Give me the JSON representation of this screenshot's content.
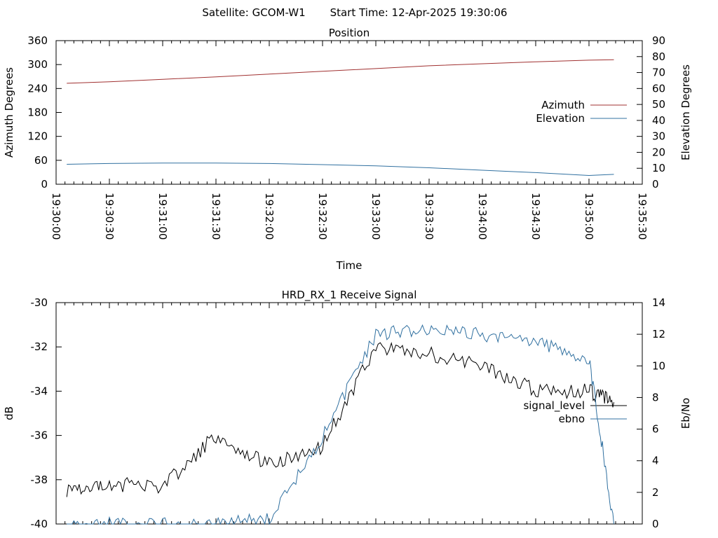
{
  "header": {
    "satellite": "Satellite: GCOM-W1",
    "start_time": "Start Time: 12-Apr-2025 19:30:06"
  },
  "chart_data": [
    {
      "type": "line",
      "title": "Position",
      "xlabel": "Time",
      "ylabel": "Azimuth Degrees",
      "y2label": "Elevation Degrees",
      "xlim": [
        "19:30:00",
        "19:35:30"
      ],
      "ylim": [
        0,
        360
      ],
      "y2lim": [
        0,
        90
      ],
      "x_ticks": [
        "19:30:00",
        "19:30:30",
        "19:31:00",
        "19:31:30",
        "19:32:00",
        "19:32:30",
        "19:33:00",
        "19:33:30",
        "19:34:00",
        "19:34:30",
        "19:35:00",
        "19:35:30"
      ],
      "y_ticks": [
        "0",
        "60",
        "120",
        "180",
        "240",
        "300",
        "360"
      ],
      "y2_ticks": [
        "0",
        "10",
        "20",
        "30",
        "40",
        "50",
        "60",
        "70",
        "80",
        "90"
      ],
      "legend_position": "right",
      "series": [
        {
          "name": "Azimuth",
          "axis": "left",
          "color": "#a03030",
          "x": [
            "19:30:06",
            "19:30:30",
            "19:31:00",
            "19:31:30",
            "19:32:00",
            "19:32:30",
            "19:33:00",
            "19:33:30",
            "19:34:00",
            "19:34:30",
            "19:35:00",
            "19:35:14"
          ],
          "values": [
            253,
            257,
            263,
            269,
            276,
            283,
            290,
            297,
            302,
            307,
            311,
            312
          ]
        },
        {
          "name": "Elevation",
          "axis": "right",
          "color": "#3070a0",
          "x": [
            "19:30:06",
            "19:30:30",
            "19:31:00",
            "19:31:30",
            "19:32:00",
            "19:32:30",
            "19:33:00",
            "19:33:30",
            "19:34:00",
            "19:34:30",
            "19:35:00",
            "19:35:14"
          ],
          "values": [
            12.5,
            13,
            13.3,
            13.3,
            13,
            12.3,
            11.5,
            10.3,
            8.8,
            7.3,
            5.5,
            6.2
          ]
        }
      ]
    },
    {
      "type": "line",
      "title": "HRD_RX_1 Receive Signal",
      "ylabel": "dB",
      "y2label": "Eb/No",
      "xlim": [
        "19:30:00",
        "19:35:30"
      ],
      "ylim": [
        -40,
        -30
      ],
      "y2lim": [
        0,
        14
      ],
      "y_ticks": [
        "-40",
        "-38",
        "-36",
        "-34",
        "-32",
        "-30"
      ],
      "y2_ticks": [
        "0",
        "2",
        "4",
        "6",
        "8",
        "10",
        "12",
        "14"
      ],
      "legend_position": "right",
      "series": [
        {
          "name": "signal_level",
          "axis": "left",
          "color": "#000000",
          "x": [
            "19:30:06",
            "19:30:30",
            "19:31:00",
            "19:31:30",
            "19:32:00",
            "19:32:30",
            "19:33:00",
            "19:33:30",
            "19:34:00",
            "19:34:30",
            "19:35:00",
            "19:35:14"
          ],
          "values": [
            -38.5,
            -38.2,
            -38.3,
            -36,
            -37.3,
            -36.5,
            -32,
            -32.3,
            -32.8,
            -34,
            -34,
            -34.5
          ]
        },
        {
          "name": "ebno",
          "axis": "right",
          "color": "#3070a0",
          "x": [
            "19:30:06",
            "19:30:30",
            "19:31:00",
            "19:31:30",
            "19:32:00",
            "19:32:30",
            "19:33:00",
            "19:33:30",
            "19:34:00",
            "19:34:30",
            "19:35:00",
            "19:35:14"
          ],
          "values": [
            0,
            0,
            0,
            0,
            0.4,
            5.5,
            12,
            12.3,
            12,
            11.5,
            10.5,
            0
          ]
        }
      ]
    }
  ]
}
